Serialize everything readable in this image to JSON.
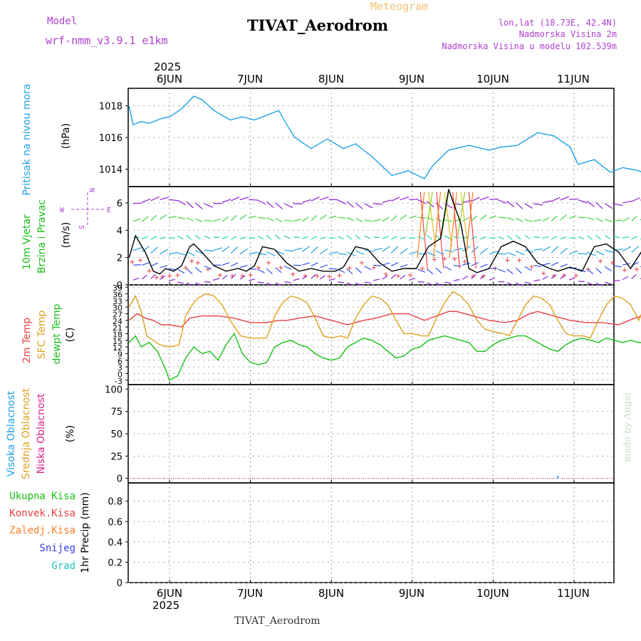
{
  "header": {
    "model_label": "Model",
    "model_name": "wrf-nmm_v3.9.1  e1km",
    "top_title": "Meteogram",
    "station": "TIVAT_Aerodrom",
    "coords": "lon,lat (18.73E, 42.4N)",
    "elevation": "Nadmorska Visina 2m",
    "model_elevation": "Nadmorska Visina u modelu 102.539m",
    "year": "2025",
    "footer_station": "TIVAT_Aerodrom",
    "watermark": "made by Angel"
  },
  "days": [
    "6JUN",
    "7JUN",
    "8JUN",
    "9JUN",
    "10JUN",
    "11JUN"
  ],
  "colors": {
    "pressure": "#1ea0e8",
    "temp2m": "#e84040",
    "sfc": "#e0a020",
    "dewpt": "#18c018",
    "wind_speed": "#000000",
    "gust": "#e84040",
    "precip_total": "#18c018",
    "precip_conv": "#e84040",
    "precip_frozen": "#ff7f2a",
    "snow": "#3a3af0",
    "hail": "#20c0c0"
  },
  "panels": {
    "pressure": {
      "ylabel_name": "Pritisak na nivou mora",
      "ylabel_unit": "(hPa)",
      "ticks": [
        "1014",
        "1016",
        "1018"
      ]
    },
    "wind": {
      "ylabel_name1": "10m Vjetar",
      "ylabel_name2": "Brzina i Pravac",
      "ylabel_unit": "(m/s)",
      "compass_n": "N",
      "compass_s": "S",
      "compass_e": "E",
      "compass_w": "W",
      "ticks": [
        "0",
        "2",
        "4",
        "6"
      ]
    },
    "temp": {
      "label_2m": "2m Temp",
      "label_sfc": "SFC Temp",
      "label_dewpt": "dewpt Temp",
      "ylabel_unit": "(C)",
      "ticks": [
        "-3",
        "0",
        "3",
        "6",
        "9",
        "12",
        "15",
        "18",
        "21",
        "24",
        "27",
        "30",
        "33",
        "36",
        "39"
      ]
    },
    "cloud": {
      "label_high": "Visoka Oblacnost",
      "label_mid": "Srednja Oblacnost",
      "label_low": "Niska Oblacnost",
      "ylabel_unit": "(%)",
      "ticks": [
        "0",
        "25",
        "50",
        "75",
        "100"
      ]
    },
    "precip": {
      "label_total": "Ukupna Kisa",
      "label_conv": "Konvek.Kisa",
      "label_frozen": "Zaledj.Kisa",
      "label_snow": "Snijeg",
      "label_hail": "Grad",
      "ylabel_unit": "1hr Precip (mm)",
      "ticks": [
        "0",
        "0.2",
        "0.4",
        "0.6",
        "0.8"
      ]
    }
  },
  "chart_data": [
    {
      "type": "line",
      "title": "TIVAT_Aerodrom",
      "ylabel": "Pritisak na nivou mora (hPa)",
      "x_unit": "days since 2025-06-06 00Z",
      "ylim": [
        1012.9,
        1019.1
      ],
      "series": [
        {
          "name": "Pritisak na nivou mora",
          "x": [
            -0.5,
            -0.45,
            -0.35,
            -0.25,
            -0.1,
            0.0,
            0.15,
            0.3,
            0.4,
            0.55,
            0.75,
            0.9,
            1.05,
            1.2,
            1.35,
            1.45,
            1.55,
            1.75,
            1.95,
            2.15,
            2.3,
            2.5,
            2.75,
            2.95,
            3.15,
            3.25,
            3.45,
            3.7,
            3.95,
            4.1,
            4.3,
            4.55,
            4.75,
            4.95,
            5.05,
            5.25,
            5.45,
            5.6,
            5.8,
            5.95
          ],
          "y": [
            1018.0,
            1016.8,
            1017.0,
            1016.9,
            1017.2,
            1017.3,
            1017.8,
            1018.6,
            1018.4,
            1017.7,
            1017.1,
            1017.3,
            1017.1,
            1017.4,
            1017.7,
            1016.8,
            1016.0,
            1015.3,
            1015.9,
            1015.3,
            1015.6,
            1014.8,
            1013.6,
            1013.9,
            1013.4,
            1014.2,
            1015.2,
            1015.5,
            1015.2,
            1015.4,
            1015.5,
            1016.3,
            1016.1,
            1015.4,
            1014.3,
            1014.6,
            1013.8,
            1014.1,
            1013.9,
            1013.5
          ]
        }
      ]
    },
    {
      "type": "line",
      "ylabel": "10m Vjetar Brzina i Pravac (m/s)",
      "x_unit": "days since 2025-06-06 00Z",
      "ylim": [
        0,
        7.2
      ],
      "series": [
        {
          "name": "Brzina",
          "x": [
            -0.5,
            -0.42,
            -0.3,
            -0.2,
            -0.12,
            -0.05,
            0.05,
            0.15,
            0.25,
            0.3,
            0.4,
            0.55,
            0.7,
            0.85,
            0.95,
            1.05,
            1.15,
            1.3,
            1.45,
            1.6,
            1.75,
            1.9,
            2.05,
            2.15,
            2.3,
            2.45,
            2.6,
            2.75,
            2.9,
            3.05,
            3.2,
            3.35,
            3.45,
            3.6,
            3.7,
            3.8,
            3.95,
            4.1,
            4.25,
            4.4,
            4.55,
            4.7,
            4.8,
            4.95,
            5.1,
            5.25,
            5.4,
            5.55,
            5.7,
            5.85,
            5.95
          ],
          "y": [
            2.0,
            3.6,
            2.4,
            1.0,
            0.8,
            1.2,
            1.0,
            1.4,
            2.8,
            3.0,
            2.4,
            1.4,
            1.0,
            1.2,
            1.0,
            1.4,
            2.8,
            2.6,
            1.6,
            1.0,
            1.2,
            1.0,
            1.0,
            1.3,
            2.8,
            2.6,
            1.6,
            1.0,
            1.2,
            1.2,
            2.8,
            3.4,
            7.0,
            4.5,
            1.2,
            0.9,
            1.2,
            2.8,
            3.2,
            2.8,
            1.6,
            1.2,
            1.0,
            1.3,
            1.0,
            2.8,
            3.0,
            2.4,
            1.2,
            2.6,
            3.4
          ]
        }
      ]
    },
    {
      "type": "line",
      "ylabel": "Temp (C)",
      "x_unit": "days since 2025-06-06 00Z",
      "ylim": [
        -5,
        40
      ],
      "series": [
        {
          "name": "2m Temp",
          "x": [
            -0.5,
            -0.4,
            -0.3,
            -0.2,
            -0.1,
            0.0,
            0.15,
            0.25,
            0.4,
            0.6,
            0.8,
            1.0,
            1.2,
            1.35,
            1.45,
            1.6,
            1.8,
            2.0,
            2.2,
            2.4,
            2.55,
            2.75,
            2.95,
            3.15,
            3.3,
            3.45,
            3.55,
            3.75,
            3.95,
            4.15,
            4.3,
            4.45,
            4.55,
            4.75,
            4.95,
            5.15,
            5.35,
            5.55,
            5.75,
            5.95
          ],
          "y": [
            24,
            27,
            25,
            24,
            22,
            22,
            21,
            25,
            26,
            26,
            25,
            23,
            23,
            24,
            24,
            25,
            26,
            24,
            22,
            24,
            25,
            27,
            27,
            24,
            26,
            28,
            28,
            26,
            24,
            23,
            24,
            27,
            28,
            26,
            24,
            23,
            23,
            22,
            25,
            27
          ]
        },
        {
          "name": "SFC Temp",
          "x": [
            -0.5,
            -0.42,
            -0.35,
            -0.28,
            -0.2,
            -0.12,
            0.0,
            0.12,
            0.2,
            0.28,
            0.35,
            0.45,
            0.55,
            0.65,
            0.75,
            0.88,
            1.0,
            1.12,
            1.2,
            1.3,
            1.4,
            1.5,
            1.6,
            1.7,
            1.8,
            1.9,
            2.0,
            2.12,
            2.2,
            2.3,
            2.4,
            2.5,
            2.6,
            2.7,
            2.8,
            2.9,
            3.0,
            3.12,
            3.2,
            3.3,
            3.4,
            3.5,
            3.6,
            3.7,
            3.8,
            3.9,
            4.0,
            4.12,
            4.2,
            4.3,
            4.4,
            4.5,
            4.6,
            4.7,
            4.8,
            4.9,
            5.0,
            5.12,
            5.2,
            5.3,
            5.4,
            5.5,
            5.6,
            5.7,
            5.8,
            5.9,
            5.95
          ],
          "y": [
            30,
            35,
            28,
            17,
            15,
            13,
            12,
            13,
            26,
            31,
            34,
            36,
            35,
            31,
            24,
            17,
            16,
            16,
            16,
            26,
            32,
            35,
            34,
            32,
            25,
            17,
            16,
            17,
            16,
            25,
            31,
            35,
            34,
            31,
            24,
            18,
            18,
            17,
            17,
            25,
            32,
            37,
            35,
            31,
            24,
            20,
            19,
            18,
            17,
            24,
            31,
            35,
            34,
            31,
            24,
            18,
            17,
            17,
            16,
            24,
            31,
            35,
            34,
            31,
            24,
            33,
            35
          ]
        },
        {
          "name": "dewpt Temp",
          "x": [
            -0.5,
            -0.42,
            -0.35,
            -0.25,
            -0.15,
            -0.05,
            0.0,
            0.1,
            0.2,
            0.3,
            0.4,
            0.5,
            0.6,
            0.7,
            0.8,
            0.9,
            1.0,
            1.1,
            1.2,
            1.3,
            1.4,
            1.5,
            1.6,
            1.7,
            1.8,
            1.9,
            2.0,
            2.1,
            2.2,
            2.3,
            2.4,
            2.5,
            2.6,
            2.7,
            2.8,
            2.9,
            3.0,
            3.1,
            3.2,
            3.3,
            3.4,
            3.5,
            3.6,
            3.7,
            3.8,
            3.9,
            4.0,
            4.1,
            4.2,
            4.3,
            4.4,
            4.5,
            4.6,
            4.7,
            4.8,
            4.9,
            5.0,
            5.1,
            5.2,
            5.3,
            5.4,
            5.5,
            5.6,
            5.7,
            5.8,
            5.9,
            5.95
          ],
          "y": [
            14,
            17,
            12,
            14,
            10,
            2,
            -3,
            -1,
            7,
            12,
            9,
            10,
            6,
            13,
            18,
            9,
            5,
            4,
            5,
            12,
            14,
            15,
            13,
            12,
            9,
            7,
            6,
            7,
            12,
            14,
            16,
            15,
            13,
            10,
            7,
            8,
            11,
            12,
            15,
            16,
            17,
            16,
            15,
            14,
            10,
            10,
            13,
            15,
            16,
            17,
            17,
            15,
            13,
            11,
            10,
            13,
            15,
            16,
            15,
            14,
            16,
            15,
            14,
            15,
            14,
            14,
            14
          ]
        }
      ]
    },
    {
      "type": "bar",
      "ylabel": "Oblacnost (%)",
      "x_unit": "days since 2025-06-06 00Z",
      "ylim": [
        -5,
        105
      ],
      "series": [
        {
          "name": "Visoka Oblacnost",
          "x": [
            4.8,
            5.9
          ],
          "y": [
            3,
            2
          ]
        },
        {
          "name": "Srednja Oblacnost",
          "x": [
            5.95
          ],
          "y": [
            2
          ]
        },
        {
          "name": "Niska Oblacnost",
          "x": [],
          "y": []
        }
      ]
    },
    {
      "type": "bar",
      "ylabel": "1hr Precip (mm)",
      "x_unit": "days since 2025-06-06 00Z",
      "ylim": [
        0,
        0.98
      ],
      "series": [
        {
          "name": "Ukupna Kisa",
          "x": [],
          "y": []
        },
        {
          "name": "Konvek.Kisa",
          "x": [],
          "y": []
        },
        {
          "name": "Zaledj.Kisa",
          "x": [],
          "y": []
        },
        {
          "name": "Snijeg",
          "x": [],
          "y": []
        },
        {
          "name": "Grad",
          "x": [],
          "y": []
        }
      ]
    }
  ]
}
